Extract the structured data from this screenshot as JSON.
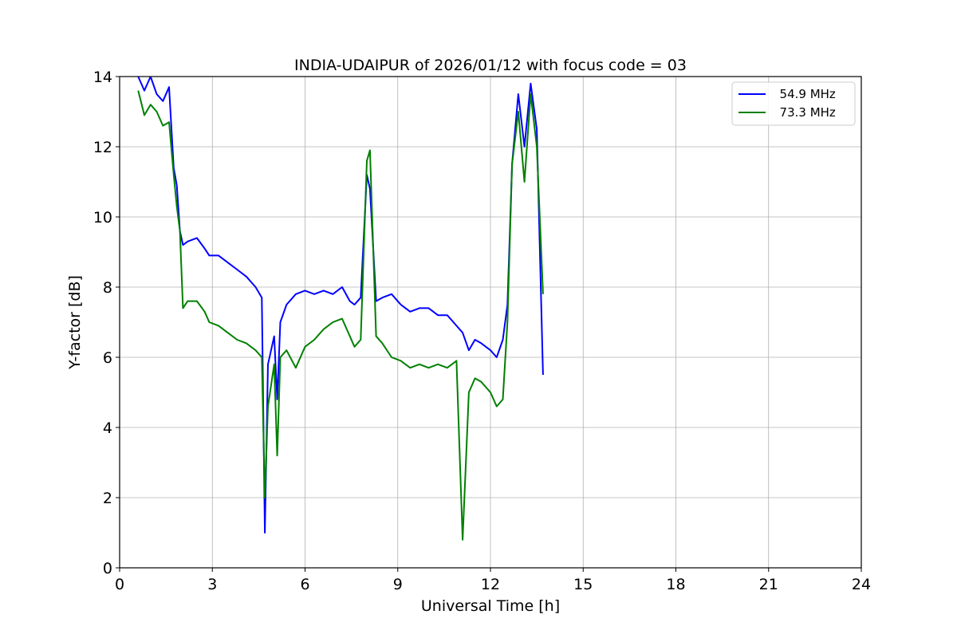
{
  "chart_data": {
    "type": "line",
    "title": "INDIA-UDAIPUR of 2026/01/12 with focus code = 03",
    "xlabel": "Universal Time [h]",
    "ylabel": "Y-factor [dB]",
    "xlim": [
      0,
      24
    ],
    "ylim": [
      0,
      14
    ],
    "x_ticks": [
      0,
      3,
      6,
      9,
      12,
      15,
      18,
      21,
      24
    ],
    "y_ticks": [
      0,
      2,
      4,
      6,
      8,
      10,
      12,
      14
    ],
    "grid": true,
    "legend_position": "top-right",
    "series": [
      {
        "name": "  54.9 MHz",
        "color": "#0000ff",
        "x": [
          0.6,
          0.8,
          1.0,
          1.2,
          1.4,
          1.6,
          1.75,
          1.85,
          1.95,
          2.05,
          2.2,
          2.5,
          2.75,
          2.9,
          3.2,
          3.5,
          3.8,
          4.1,
          4.4,
          4.6,
          4.7,
          4.8,
          5.0,
          5.1,
          5.2,
          5.4,
          5.7,
          6.0,
          6.3,
          6.6,
          6.9,
          7.2,
          7.45,
          7.6,
          7.8,
          8.0,
          8.1,
          8.3,
          8.5,
          8.8,
          9.1,
          9.4,
          9.7,
          10.0,
          10.3,
          10.6,
          10.9,
          11.1,
          11.3,
          11.5,
          11.7,
          12.0,
          12.2,
          12.4,
          12.55,
          12.7,
          12.9,
          13.1,
          13.3,
          13.5,
          13.7
        ],
        "values": [
          14.0,
          13.6,
          14.0,
          13.5,
          13.3,
          13.7,
          11.4,
          10.9,
          9.6,
          9.2,
          9.3,
          9.4,
          9.1,
          8.9,
          8.9,
          8.7,
          8.5,
          8.3,
          8.0,
          7.7,
          1.0,
          5.8,
          6.6,
          4.8,
          7.0,
          7.5,
          7.8,
          7.9,
          7.8,
          7.9,
          7.8,
          8.0,
          7.6,
          7.5,
          7.7,
          11.2,
          10.8,
          7.6,
          7.7,
          7.8,
          7.5,
          7.3,
          7.4,
          7.4,
          7.2,
          7.2,
          6.9,
          6.7,
          6.2,
          6.5,
          6.4,
          6.2,
          6.0,
          6.5,
          7.5,
          11.5,
          13.5,
          12.0,
          13.8,
          12.5,
          5.5
        ]
      },
      {
        "name": "  73.3 MHz",
        "color": "#008000",
        "x": [
          0.6,
          0.8,
          1.0,
          1.2,
          1.4,
          1.6,
          1.75,
          1.85,
          1.95,
          2.05,
          2.2,
          2.5,
          2.75,
          2.9,
          3.2,
          3.5,
          3.8,
          4.1,
          4.4,
          4.6,
          4.7,
          4.8,
          5.0,
          5.1,
          5.2,
          5.4,
          5.7,
          6.0,
          6.3,
          6.6,
          6.9,
          7.2,
          7.45,
          7.6,
          7.8,
          8.0,
          8.1,
          8.3,
          8.5,
          8.8,
          9.1,
          9.4,
          9.7,
          10.0,
          10.3,
          10.6,
          10.9,
          11.1,
          11.3,
          11.5,
          11.7,
          12.0,
          12.2,
          12.4,
          12.55,
          12.7,
          12.9,
          13.1,
          13.3,
          13.5,
          13.7
        ],
        "values": [
          13.6,
          12.9,
          13.2,
          13.0,
          12.6,
          12.7,
          11.2,
          10.3,
          9.6,
          7.4,
          7.6,
          7.6,
          7.3,
          7.0,
          6.9,
          6.7,
          6.5,
          6.4,
          6.2,
          6.0,
          2.0,
          4.6,
          5.8,
          3.2,
          6.0,
          6.2,
          5.7,
          6.3,
          6.5,
          6.8,
          7.0,
          7.1,
          6.6,
          6.3,
          6.5,
          11.6,
          11.9,
          6.6,
          6.4,
          6.0,
          5.9,
          5.7,
          5.8,
          5.7,
          5.8,
          5.7,
          5.9,
          0.8,
          5.0,
          5.4,
          5.3,
          5.0,
          4.6,
          4.8,
          7.0,
          11.5,
          13.0,
          11.0,
          13.5,
          12.0,
          7.8
        ]
      }
    ]
  }
}
